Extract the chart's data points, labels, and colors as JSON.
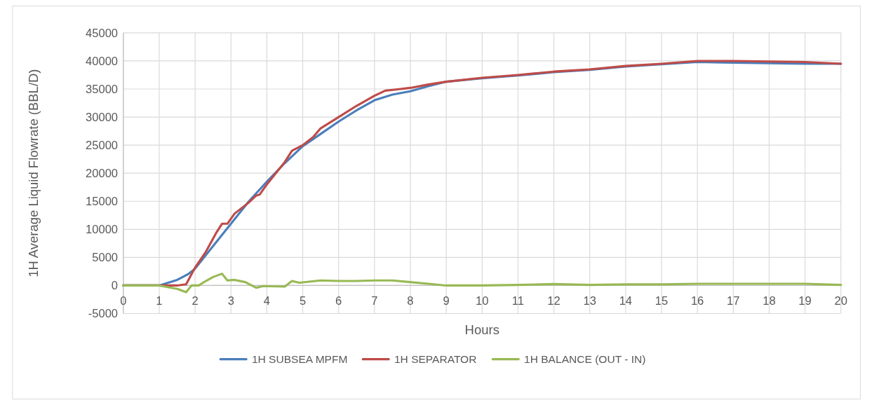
{
  "chart_data": {
    "type": "line",
    "xlabel": "Hours",
    "ylabel": "1H Average Liquid Flowrate (BBL/D)",
    "xlim": [
      0,
      20
    ],
    "xticks": [
      0,
      1,
      2,
      3,
      4,
      5,
      6,
      7,
      8,
      9,
      10,
      11,
      12,
      13,
      14,
      15,
      16,
      17,
      18,
      19,
      20
    ],
    "ylim": [
      -5000,
      45000
    ],
    "yticks": [
      -5000,
      0,
      5000,
      10000,
      15000,
      20000,
      25000,
      30000,
      35000,
      40000,
      45000
    ],
    "grid": true,
    "legend": "bottom",
    "marker": "none",
    "line_style": "solid",
    "series": [
      {
        "name": "1H SUBSEA MPFM",
        "color": "#4a7ebb",
        "x": [
          0,
          1,
          1.5,
          1.8,
          2,
          2.5,
          3,
          3.5,
          4,
          4.5,
          5,
          5.5,
          6,
          6.5,
          7,
          7.5,
          8,
          8.5,
          9,
          10,
          11,
          12,
          13,
          14,
          15,
          16,
          17,
          18,
          19,
          20
        ],
        "values": [
          0,
          0,
          1000,
          2000,
          3000,
          7000,
          11000,
          15000,
          18500,
          21800,
          24800,
          27000,
          29200,
          31200,
          33000,
          34000,
          34600,
          35500,
          36300,
          36900,
          37400,
          38000,
          38400,
          39000,
          39400,
          39800,
          39700,
          39600,
          39500,
          39500
        ]
      },
      {
        "name": "1H SEPARATOR",
        "color": "#be4b48",
        "x": [
          0,
          1,
          1.5,
          1.75,
          2,
          2.3,
          2.6,
          2.75,
          2.9,
          3.1,
          3.5,
          3.7,
          3.8,
          4,
          4.5,
          4.7,
          5,
          5.3,
          5.5,
          6,
          6.5,
          7,
          7.3,
          7.6,
          8,
          8.5,
          9,
          10,
          11,
          12,
          13,
          14,
          15,
          16,
          17,
          18,
          19,
          20
        ],
        "values": [
          0,
          0,
          0,
          200,
          3200,
          6000,
          9500,
          11000,
          11000,
          12800,
          14800,
          16000,
          16200,
          18000,
          22000,
          24000,
          25000,
          26500,
          28000,
          30000,
          32000,
          33800,
          34700,
          34900,
          35200,
          35800,
          36300,
          37000,
          37500,
          38100,
          38500,
          39100,
          39500,
          40000,
          40000,
          39900,
          39800,
          39500
        ]
      },
      {
        "name": "1H BALANCE (OUT - IN)",
        "color": "#98b954",
        "x": [
          0,
          1,
          1.5,
          1.75,
          1.9,
          2.1,
          2.3,
          2.5,
          2.75,
          2.9,
          3.1,
          3.4,
          3.7,
          3.9,
          4.5,
          4.7,
          4.9,
          5.5,
          6,
          6.5,
          7,
          7.5,
          8,
          8.5,
          9,
          10,
          11,
          12,
          13,
          14,
          15,
          16,
          17,
          18,
          19,
          20
        ],
        "values": [
          0,
          0,
          -600,
          -1200,
          0,
          0,
          800,
          1500,
          2100,
          900,
          1000,
          600,
          -400,
          -100,
          -200,
          800,
          500,
          900,
          800,
          800,
          900,
          900,
          600,
          300,
          0,
          0,
          100,
          250,
          100,
          200,
          200,
          300,
          300,
          300,
          300,
          100
        ]
      }
    ]
  }
}
